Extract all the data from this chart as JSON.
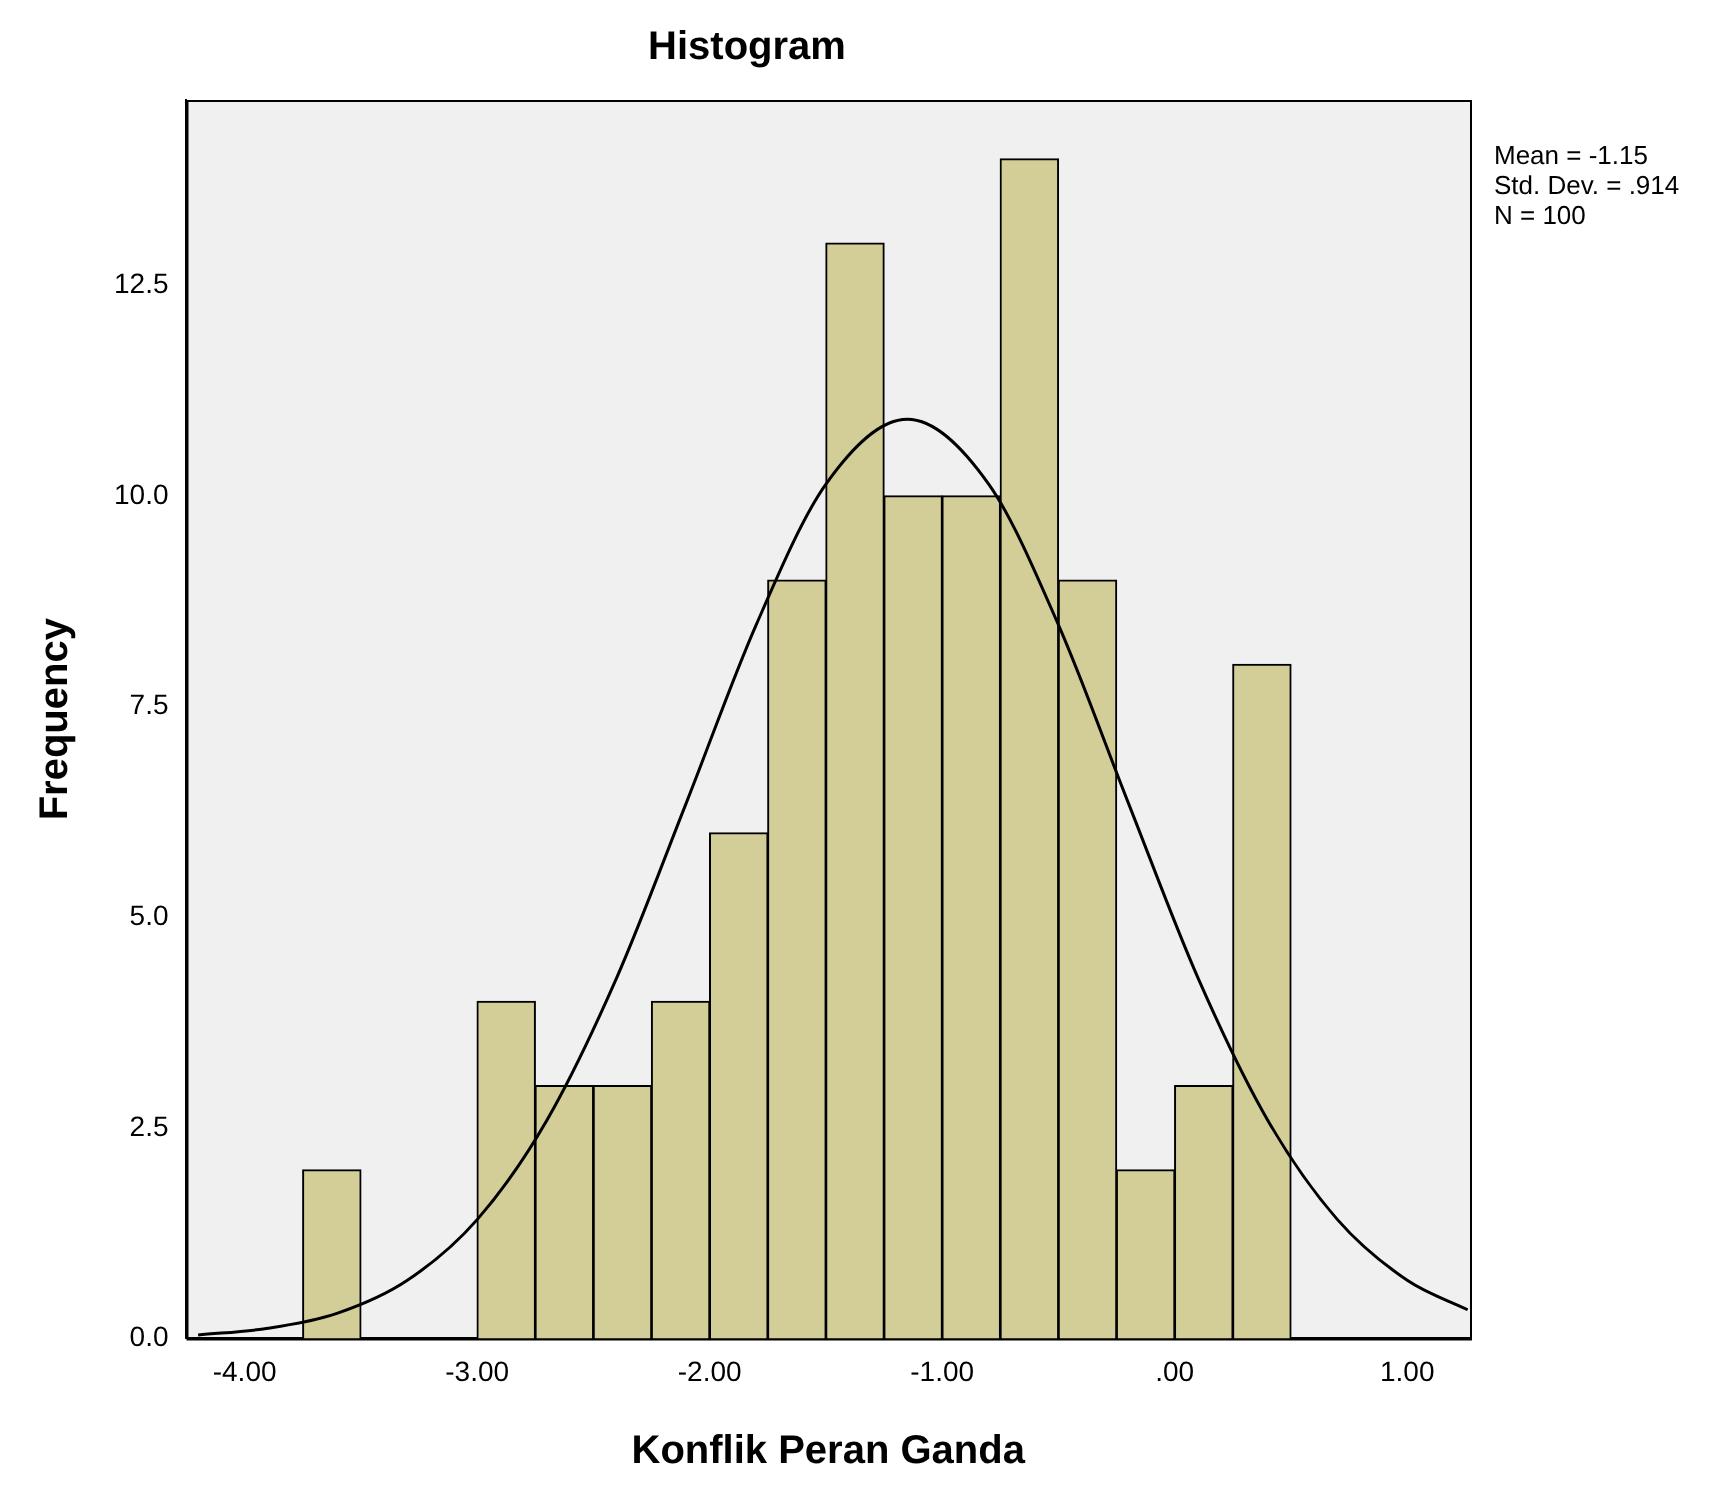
{
  "chart_data": {
    "type": "histogram",
    "title": "Histogram",
    "xlabel": "Konflik Peran Ganda",
    "ylabel": "Frequency",
    "bins": [
      -3.75,
      -3.5,
      -3.25,
      -3.0,
      -2.75,
      -2.5,
      -2.25,
      -2.0,
      -1.75,
      -1.5,
      -1.25,
      -1.0,
      -0.75,
      -0.5,
      -0.25,
      0.0,
      0.25,
      0.5
    ],
    "values": [
      2,
      0,
      0,
      4,
      3,
      3,
      4,
      6,
      9,
      13,
      10,
      10,
      14,
      9,
      2,
      3,
      8
    ],
    "color": "#d3ce98",
    "series": [
      {
        "type": "line",
        "color": "#000000",
        "x": [
          -4.2,
          -3.9,
          -3.6,
          -3.3,
          -3.0,
          -2.7,
          -2.4,
          -2.1,
          -1.8,
          -1.5,
          -1.15,
          -0.8,
          -0.5,
          -0.2,
          0.1,
          0.4,
          0.7,
          1.0,
          1.26
        ],
        "values": [
          0.04,
          0.12,
          0.3,
          0.69,
          1.41,
          2.59,
          4.28,
          6.36,
          8.47,
          10.14,
          10.91,
          10.14,
          8.47,
          6.36,
          4.28,
          2.59,
          1.41,
          0.69,
          0.34
        ]
      }
    ],
    "xlim": [
      -4.25,
      1.27
    ],
    "ylim": [
      0,
      14.7
    ],
    "xticks": [
      {
        "value": -4,
        "label": "-4.00"
      },
      {
        "value": -3,
        "label": "-3.00"
      },
      {
        "value": -2,
        "label": "-2.00"
      },
      {
        "value": -1,
        "label": "-1.00"
      },
      {
        "value": 0,
        "label": ".00"
      },
      {
        "value": 1,
        "label": "1.00"
      }
    ],
    "yticks": [
      {
        "value": 0,
        "label": "0.0"
      },
      {
        "value": 2.5,
        "label": "2.5"
      },
      {
        "value": 5,
        "label": "5.0"
      },
      {
        "value": 7.5,
        "label": "7.5"
      },
      {
        "value": 10,
        "label": "10.0"
      },
      {
        "value": 12.5,
        "label": "12.5"
      }
    ],
    "annotations": [
      "Mean = -1.15",
      "Std. Dev. = .914",
      "N = 100"
    ],
    "grid": false,
    "legend": false,
    "marker": "none"
  }
}
